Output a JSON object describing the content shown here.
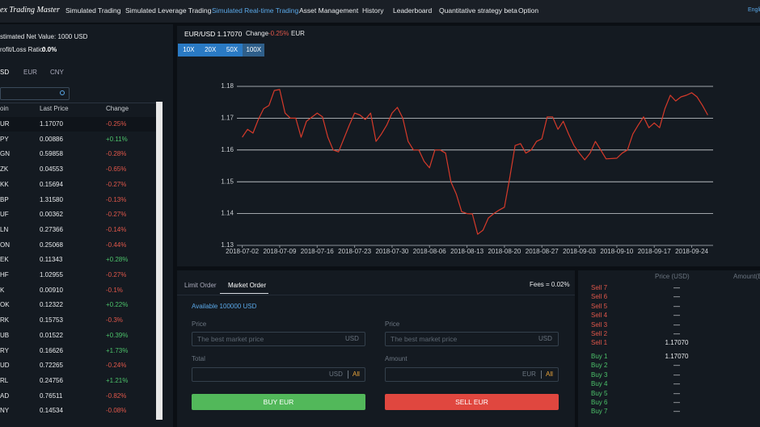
{
  "nav": {
    "brand": "ex Trading Master",
    "items": [
      "Simulated Trading",
      "Simulated Leverage Trading",
      "Simulated Real-time Trading",
      "Asset Management",
      "History",
      "Leaderboard",
      "Quantitative strategy beta",
      "Option"
    ],
    "active": 2,
    "language": "Engli"
  },
  "account": {
    "net_value": "stimated Net Value: 1000 USD",
    "ratio_label": "rofit/Loss Ratio:",
    "ratio_value": "0.0%"
  },
  "currency_tabs": [
    "SD",
    "EUR",
    "CNY"
  ],
  "market_table": {
    "headers": [
      "oin",
      "Last Price",
      "Change"
    ],
    "rows": [
      [
        "UR",
        "1.17070",
        "-0.25%"
      ],
      [
        "PY",
        "0.00886",
        "+0.11%"
      ],
      [
        "GN",
        "0.59858",
        "-0.28%"
      ],
      [
        "ZK",
        "0.04553",
        "-0.65%"
      ],
      [
        "KK",
        "0.15694",
        "-0.27%"
      ],
      [
        "BP",
        "1.31580",
        "-0.13%"
      ],
      [
        "UF",
        "0.00362",
        "-0.27%"
      ],
      [
        "LN",
        "0.27366",
        "-0.14%"
      ],
      [
        "ON",
        "0.25068",
        "-0.44%"
      ],
      [
        "EK",
        "0.11343",
        "+0.28%"
      ],
      [
        "HF",
        "1.02955",
        "-0.27%"
      ],
      [
        "K",
        "0.00910",
        "-0.1%"
      ],
      [
        "OK",
        "0.12322",
        "+0.22%"
      ],
      [
        "RK",
        "0.15753",
        "-0.3%"
      ],
      [
        "UB",
        "0.01522",
        "+0.39%"
      ],
      [
        "RY",
        "0.16626",
        "+1.73%"
      ],
      [
        "UD",
        "0.72265",
        "-0.24%"
      ],
      [
        "RL",
        "0.24756",
        "+1.21%"
      ],
      [
        "AD",
        "0.76511",
        "-0.82%"
      ],
      [
        "NY",
        "0.14534",
        "-0.08%"
      ]
    ]
  },
  "pair_header": {
    "pair": "EUR/USD 1.17070",
    "change_label": "Change",
    "change_value": "-0.25%",
    "currency": "EUR"
  },
  "leverage": [
    "10X",
    "20X",
    "50X",
    "100X"
  ],
  "chart_data": {
    "type": "line",
    "color": "#d63a2a",
    "grid": true,
    "x": [
      "2018-07-02",
      "2018-07-03",
      "2018-07-04",
      "2018-07-05",
      "2018-07-06",
      "2018-07-07",
      "2018-07-08",
      "2018-07-09",
      "2018-07-10",
      "2018-07-11",
      "2018-07-12",
      "2018-07-13",
      "2018-07-14",
      "2018-07-16",
      "2018-07-17",
      "2018-07-18",
      "2018-07-19",
      "2018-07-20",
      "2018-07-22",
      "2018-07-23",
      "2018-07-24",
      "2018-07-25",
      "2018-07-26",
      "2018-07-27",
      "2018-07-28",
      "2018-07-29",
      "2018-07-30",
      "2018-07-31",
      "2018-08-01",
      "2018-08-02",
      "2018-08-03",
      "2018-08-04",
      "2018-08-05",
      "2018-08-06",
      "2018-08-07",
      "2018-08-08",
      "2018-08-09",
      "2018-08-10",
      "2018-08-11",
      "2018-08-12",
      "2018-08-13",
      "2018-08-14",
      "2018-08-15",
      "2018-08-16",
      "2018-08-17",
      "2018-08-18",
      "2018-08-19",
      "2018-08-20",
      "2018-08-21",
      "2018-08-22",
      "2018-08-23",
      "2018-08-24",
      "2018-08-25",
      "2018-08-26",
      "2018-08-27",
      "2018-08-28",
      "2018-08-29",
      "2018-08-30",
      "2018-08-31",
      "2018-09-01",
      "2018-09-02",
      "2018-09-03",
      "2018-09-04",
      "2018-09-05",
      "2018-09-06",
      "2018-09-07",
      "2018-09-08",
      "2018-09-10",
      "2018-09-11",
      "2018-09-12",
      "2018-09-13",
      "2018-09-14",
      "2018-09-15",
      "2018-09-16",
      "2018-09-17",
      "2018-09-18",
      "2018-09-19",
      "2018-09-20",
      "2018-09-21",
      "2018-09-22",
      "2018-09-23",
      "2018-09-24",
      "2018-09-25",
      "2018-09-26",
      "2018-09-27"
    ],
    "values": [
      1.164,
      1.1665,
      1.1653,
      1.1696,
      1.173,
      1.174,
      1.1787,
      1.179,
      1.1716,
      1.17,
      1.17,
      1.164,
      1.169,
      1.1716,
      1.1704,
      1.164,
      1.16,
      1.1594,
      1.1678,
      1.1716,
      1.171,
      1.1696,
      1.1716,
      1.1627,
      1.165,
      1.1678,
      1.1716,
      1.1734,
      1.17,
      1.1627,
      1.16,
      1.16,
      1.1564,
      1.1544,
      1.16,
      1.16,
      1.159,
      1.15,
      1.1462,
      1.1406,
      1.14,
      1.1399,
      1.1335,
      1.1348,
      1.1386,
      1.14,
      1.1411,
      1.142,
      1.1513,
      1.1614,
      1.162,
      1.159,
      1.16,
      1.1627,
      1.1635,
      1.1704,
      1.1704,
      1.1665,
      1.169,
      1.165,
      1.1614,
      1.159,
      1.1569,
      1.159,
      1.1627,
      1.16,
      1.1572,
      1.1574,
      1.159,
      1.16,
      1.165,
      1.1678,
      1.1704,
      1.167,
      1.1685,
      1.167,
      1.173,
      1.1772,
      1.1754,
      1.1767,
      1.1772,
      1.178,
      1.1767,
      1.174,
      1.171
    ],
    "xlim": [
      "2018-07-01",
      "2018-09-28"
    ],
    "xticks": [
      "2018-07-02",
      "2018-07-09",
      "2018-07-16",
      "2018-07-23",
      "2018-07-30",
      "2018-08-06",
      "2018-08-13",
      "2018-08-20",
      "2018-08-27",
      "2018-09-03",
      "2018-09-10",
      "2018-09-17",
      "2018-09-24"
    ],
    "ylim": [
      1.13,
      1.18
    ],
    "yticks": [
      1.13,
      1.14,
      1.15,
      1.16,
      1.17,
      1.18
    ]
  },
  "order_form": {
    "tabs": [
      "Limit Order",
      "Market Order"
    ],
    "active_tab": 1,
    "fees": "Fees = 0.02%",
    "available": "Available 100000 USD",
    "buy": {
      "price_label": "Price",
      "price_placeholder": "The best market price",
      "price_unit": "USD",
      "total_label": "Total",
      "total_unit": "USD",
      "all": "All",
      "button": "BUY EUR"
    },
    "sell": {
      "price_label": "Price",
      "price_placeholder": "The best market price",
      "price_unit": "USD",
      "amount_label": "Amount",
      "amount_unit": "EUR",
      "all": "All",
      "button": "SELL EUR"
    }
  },
  "order_book": {
    "headers": [
      "Price (USD)",
      "Amount(E"
    ],
    "sell": [
      [
        "Sell 7",
        "—"
      ],
      [
        "Sell 6",
        "—"
      ],
      [
        "Sell 5",
        "—"
      ],
      [
        "Sell 4",
        "—"
      ],
      [
        "Sell 3",
        "—"
      ],
      [
        "Sell 2",
        "—"
      ],
      [
        "Sell 1",
        "1.17070"
      ]
    ],
    "buy": [
      [
        "Buy 1",
        "1.17070"
      ],
      [
        "Buy 2",
        "—"
      ],
      [
        "Buy 3",
        "—"
      ],
      [
        "Buy 4",
        "—"
      ],
      [
        "Buy 5",
        "—"
      ],
      [
        "Buy 6",
        "—"
      ],
      [
        "Buy 7",
        "—"
      ]
    ]
  }
}
